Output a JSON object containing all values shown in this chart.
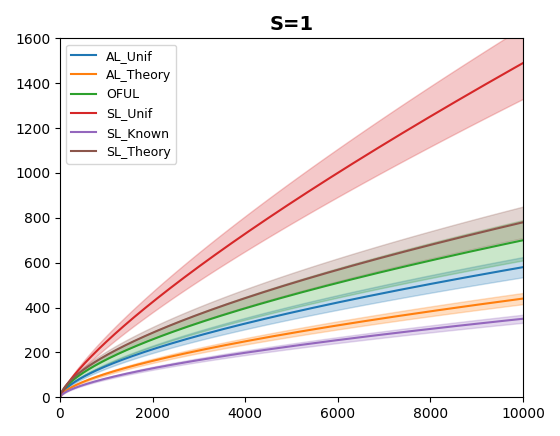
{
  "title": "S=1",
  "title_fontsize": 14,
  "title_fontweight": "bold",
  "xlim": [
    0,
    10000
  ],
  "ylim": [
    0,
    1600
  ],
  "yticks": [
    0,
    200,
    400,
    600,
    800,
    1000,
    1200,
    1400,
    1600
  ],
  "xticks": [
    0,
    2000,
    4000,
    6000,
    8000,
    10000
  ],
  "series": [
    {
      "label": "AL_Unif",
      "color": "#1f77b4",
      "mean_end": 580,
      "std_end": 45,
      "power": 0.62
    },
    {
      "label": "AL_Theory",
      "color": "#ff7f0e",
      "mean_end": 440,
      "std_end": 25,
      "power": 0.62
    },
    {
      "label": "OFUL",
      "color": "#2ca02c",
      "mean_end": 700,
      "std_end": 90,
      "power": 0.62
    },
    {
      "label": "SL_Unif",
      "color": "#d62728",
      "mean_end": 1490,
      "std_end": 160,
      "power": 0.78
    },
    {
      "label": "SL_Known",
      "color": "#9467bd",
      "mean_end": 350,
      "std_end": 18,
      "power": 0.62
    },
    {
      "label": "SL_Theory",
      "color": "#8c564b",
      "mean_end": 780,
      "std_end": 70,
      "power": 0.62
    }
  ],
  "figsize": [
    5.6,
    4.36
  ],
  "dpi": 100,
  "alpha_fill": 0.25,
  "n_points": 500
}
